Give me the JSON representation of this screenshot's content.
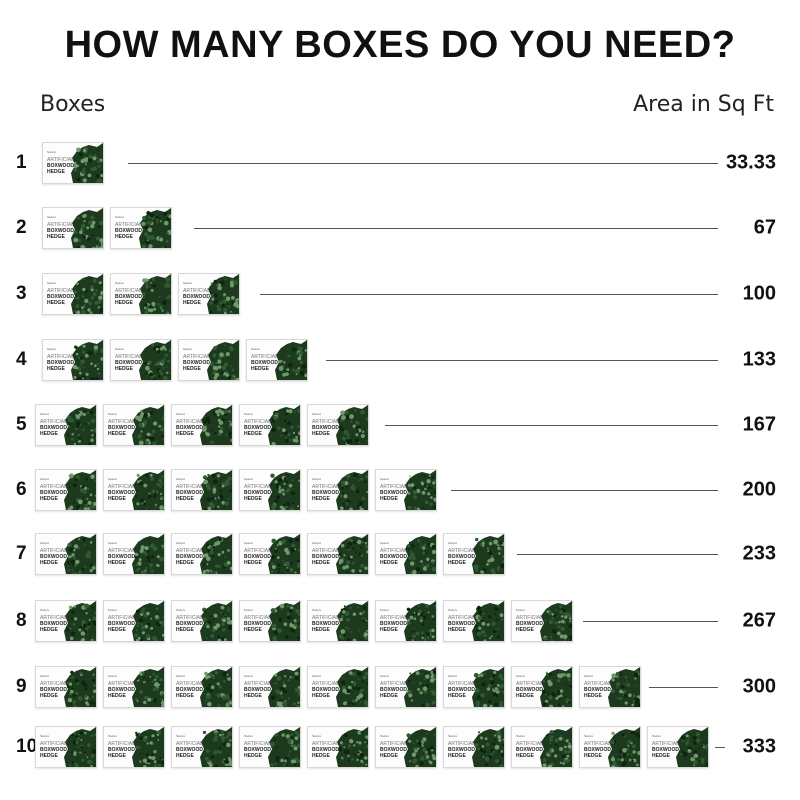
{
  "title": "HOW MANY BOXES DO YOU NEED?",
  "column_headers": {
    "left": "Boxes",
    "right": "Area in Sq Ft"
  },
  "box_label": {
    "brand": "Naturé",
    "line1": "ARTIFICIAL",
    "line2": "BOXWOOD",
    "line3": "HEDGE"
  },
  "rows": [
    {
      "boxes": "1",
      "area": "33.33"
    },
    {
      "boxes": "2",
      "area": "67"
    },
    {
      "boxes": "3",
      "area": "100"
    },
    {
      "boxes": "4",
      "area": "133"
    },
    {
      "boxes": "5",
      "area": "167"
    },
    {
      "boxes": "6",
      "area": "200"
    },
    {
      "boxes": "7",
      "area": "233"
    },
    {
      "boxes": "8",
      "area": "267"
    },
    {
      "boxes": "9",
      "area": "300"
    },
    {
      "boxes": "10",
      "area": "333"
    }
  ],
  "colors": {
    "foliage_dark": "#1d3a1f",
    "foliage_mid": "#2f5a32",
    "foliage_light": "#6e9a6a",
    "line": "#555555"
  }
}
